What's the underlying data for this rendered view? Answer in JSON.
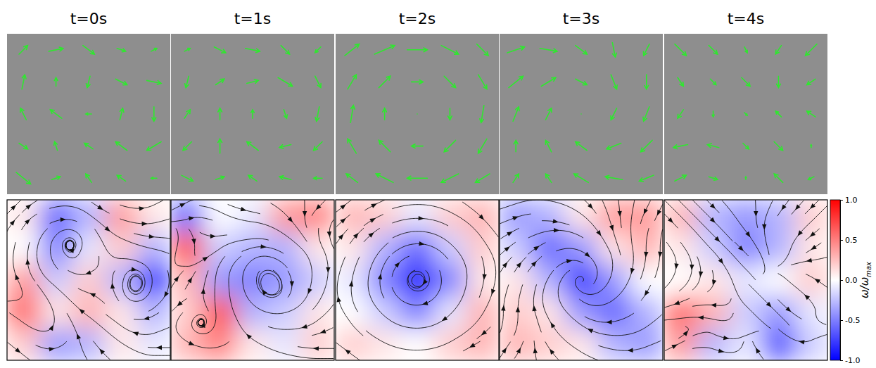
{
  "chart_data": {
    "type": "heatmap",
    "tick_labels": false,
    "panels": [
      {
        "title": "t=0s",
        "vorticity": [
          [
            0.1,
            -0.6,
            -0.3,
            0.4,
            0.1
          ],
          [
            0.0,
            -0.5,
            -0.1,
            0.2,
            -0.3
          ],
          [
            0.4,
            -0.2,
            0.2,
            -0.3,
            -0.8
          ],
          [
            0.6,
            0.1,
            0.3,
            0.1,
            -0.3
          ],
          [
            0.2,
            -0.4,
            -0.3,
            0.1,
            -0.1
          ]
        ],
        "u": [
          [
            0.3,
            0.5,
            0.4,
            0.3,
            0.2
          ],
          [
            0.1,
            0.0,
            -0.1,
            0.4,
            0.5
          ],
          [
            -0.2,
            -0.4,
            -0.2,
            0.1,
            0.0
          ],
          [
            0.3,
            -0.1,
            -0.3,
            -0.4,
            -0.5
          ],
          [
            0.5,
            0.3,
            -0.2,
            -0.3,
            -0.2
          ]
        ],
        "v": [
          [
            0.3,
            0.1,
            -0.3,
            -0.1,
            0.1
          ],
          [
            0.5,
            0.3,
            -0.4,
            -0.2,
            -0.1
          ],
          [
            0.4,
            0.3,
            0.0,
            0.4,
            -0.5
          ],
          [
            -0.2,
            0.3,
            0.2,
            0.3,
            -0.3
          ],
          [
            -0.4,
            0.1,
            0.3,
            0.2,
            0.0
          ]
        ]
      },
      {
        "title": "t=1s",
        "vorticity": [
          [
            -0.6,
            0.0,
            -0.1,
            0.4,
            0.5
          ],
          [
            0.7,
            -0.2,
            -0.3,
            -0.3,
            0.1
          ],
          [
            0.3,
            -0.4,
            -0.5,
            -0.4,
            -0.2
          ],
          [
            0.2,
            0.7,
            -0.3,
            -0.2,
            0.1
          ],
          [
            0.3,
            0.5,
            0.1,
            -0.1,
            0.2
          ]
        ],
        "u": [
          [
            0.2,
            0.4,
            0.5,
            0.3,
            -0.2
          ],
          [
            -0.1,
            0.3,
            0.4,
            0.5,
            0.2
          ],
          [
            0.2,
            0.0,
            0.0,
            0.1,
            -0.1
          ],
          [
            -0.3,
            0.0,
            -0.4,
            -0.4,
            -0.3
          ],
          [
            0.4,
            0.3,
            -0.3,
            -0.4,
            -0.3
          ]
        ],
        "v": [
          [
            0.1,
            -0.2,
            -0.1,
            -0.3,
            -0.2
          ],
          [
            -0.4,
            0.2,
            0.1,
            -0.3,
            -0.4
          ],
          [
            0.3,
            0.4,
            0.3,
            -0.3,
            -0.5
          ],
          [
            -0.3,
            0.5,
            0.3,
            -0.1,
            -0.3
          ],
          [
            -0.2,
            0.1,
            0.2,
            0.1,
            0.0
          ]
        ]
      },
      {
        "title": "t=2s",
        "vorticity": [
          [
            0.3,
            0.2,
            -0.1,
            0.2,
            0.3
          ],
          [
            0.1,
            -0.3,
            -0.6,
            -0.2,
            0.2
          ],
          [
            -0.1,
            -0.5,
            -0.9,
            -0.5,
            0.1
          ],
          [
            0.0,
            -0.2,
            -0.5,
            -0.1,
            0.3
          ],
          [
            0.2,
            0.1,
            0.0,
            0.2,
            0.3
          ]
        ],
        "u": [
          [
            0.5,
            0.7,
            0.7,
            0.6,
            0.4
          ],
          [
            0.3,
            0.4,
            0.4,
            0.4,
            0.3
          ],
          [
            0.1,
            0.0,
            0.0,
            0.0,
            -0.1
          ],
          [
            -0.3,
            -0.4,
            -0.4,
            -0.4,
            -0.3
          ],
          [
            -0.4,
            -0.6,
            -0.7,
            -0.6,
            -0.5
          ]
        ],
        "v": [
          [
            0.4,
            0.3,
            0.0,
            -0.3,
            -0.4
          ],
          [
            0.5,
            0.4,
            0.0,
            -0.4,
            -0.5
          ],
          [
            0.6,
            0.4,
            0.0,
            -0.4,
            -0.6
          ],
          [
            0.5,
            0.4,
            0.0,
            -0.4,
            -0.5
          ],
          [
            0.3,
            0.3,
            0.0,
            -0.3,
            -0.3
          ]
        ]
      },
      {
        "title": "t=3s",
        "vorticity": [
          [
            -0.4,
            -0.3,
            0.1,
            0.4,
            0.4
          ],
          [
            -0.2,
            -0.6,
            -0.4,
            0.1,
            0.3
          ],
          [
            0.1,
            -0.3,
            -0.8,
            -0.4,
            0.0
          ],
          [
            0.2,
            0.1,
            -0.4,
            -0.6,
            -0.3
          ],
          [
            0.3,
            0.2,
            0.1,
            -0.3,
            -0.4
          ]
        ],
        "u": [
          [
            0.6,
            0.6,
            0.4,
            0.1,
            -0.2
          ],
          [
            0.5,
            0.5,
            0.4,
            0.2,
            0.0
          ],
          [
            0.2,
            0.2,
            0.0,
            -0.2,
            -0.2
          ],
          [
            0.0,
            -0.2,
            -0.4,
            -0.5,
            -0.4
          ],
          [
            0.2,
            -0.2,
            -0.5,
            -0.6,
            -0.5
          ]
        ],
        "v": [
          [
            0.2,
            -0.1,
            -0.3,
            -0.5,
            -0.4
          ],
          [
            0.4,
            0.3,
            -0.2,
            -0.5,
            -0.5
          ],
          [
            0.5,
            0.4,
            0.0,
            -0.4,
            -0.5
          ],
          [
            0.4,
            0.4,
            0.3,
            -0.2,
            -0.4
          ],
          [
            0.3,
            0.3,
            0.3,
            0.1,
            -0.2
          ]
        ]
      },
      {
        "title": "t=4s",
        "vorticity": [
          [
            0.3,
            -0.3,
            -0.4,
            -0.3,
            0.2
          ],
          [
            0.1,
            -0.2,
            -0.5,
            -0.3,
            0.1
          ],
          [
            0.0,
            0.1,
            -0.1,
            0.0,
            0.2
          ],
          [
            0.6,
            0.3,
            -0.2,
            -0.4,
            -0.1
          ],
          [
            0.4,
            -0.3,
            -0.1,
            -0.7,
            -0.2
          ]
        ],
        "u": [
          [
            0.4,
            0.3,
            0.1,
            -0.2,
            -0.4
          ],
          [
            0.2,
            0.2,
            0.3,
            0.0,
            -0.3
          ],
          [
            -0.2,
            0.0,
            0.1,
            -0.2,
            -0.3
          ],
          [
            -0.5,
            -0.4,
            0.2,
            0.3,
            0.0
          ],
          [
            0.4,
            0.3,
            0.0,
            -0.3,
            -0.2
          ]
        ],
        "v": [
          [
            -0.4,
            -0.3,
            -0.2,
            -0.3,
            -0.4
          ],
          [
            -0.3,
            -0.2,
            -0.3,
            -0.4,
            -0.2
          ],
          [
            -0.3,
            -0.2,
            -0.1,
            0.2,
            0.2
          ],
          [
            -0.1,
            0.1,
            -0.2,
            -0.3,
            0.1
          ],
          [
            0.2,
            -0.1,
            0.1,
            0.3,
            -0.1
          ]
        ]
      }
    ],
    "colorbar": {
      "label": "ω/ω",
      "label_sub": "max",
      "range": [
        -1,
        1
      ],
      "ticks": [
        {
          "value": 1,
          "label": "1.0"
        },
        {
          "value": 0.5,
          "label": "0.5"
        },
        {
          "value": 0,
          "label": "0.0"
        },
        {
          "value": -0.5,
          "label": "-0.5"
        },
        {
          "value": -1,
          "label": "-1.0"
        }
      ]
    }
  }
}
